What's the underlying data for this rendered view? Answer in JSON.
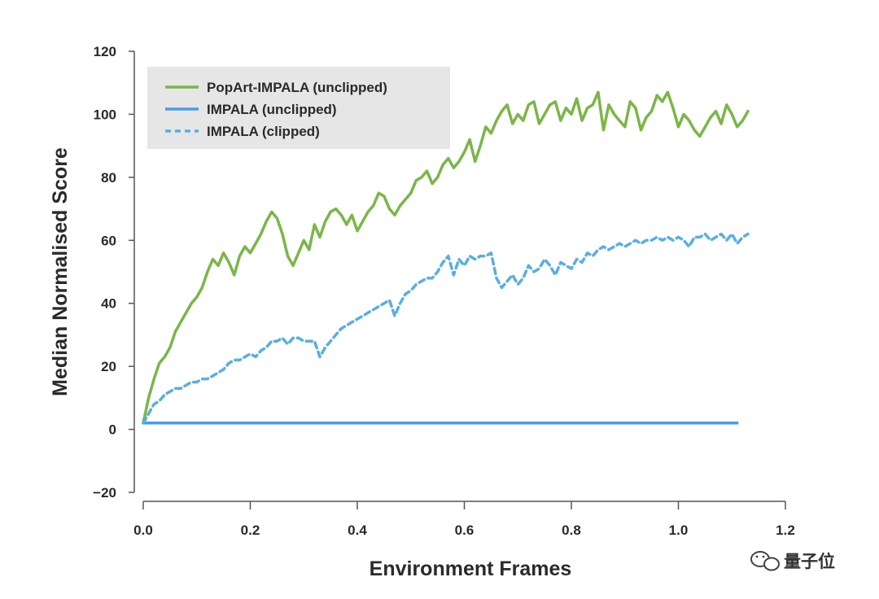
{
  "chart_data": {
    "type": "line",
    "xlabel": "Environment Frames",
    "ylabel": "Median Normalised Score",
    "xlim": [
      0.0,
      1.2
    ],
    "ylim": [
      -20,
      120
    ],
    "x_ticks": [
      "0.0",
      "0.2",
      "0.4",
      "0.6",
      "0.8",
      "1.0",
      "1.2"
    ],
    "y_ticks": [
      "120",
      "100",
      "80",
      "60",
      "40",
      "20",
      "0",
      "−20"
    ],
    "grid": false,
    "legend_position": "top-left",
    "series": [
      {
        "name": "PopArt-IMPALA (unclipped)",
        "color": "#7ab648",
        "style": "solid",
        "x": [
          0.0,
          0.01,
          0.02,
          0.03,
          0.04,
          0.05,
          0.06,
          0.07,
          0.08,
          0.09,
          0.1,
          0.11,
          0.12,
          0.13,
          0.14,
          0.15,
          0.16,
          0.17,
          0.18,
          0.19,
          0.2,
          0.21,
          0.22,
          0.23,
          0.24,
          0.25,
          0.26,
          0.27,
          0.28,
          0.29,
          0.3,
          0.31,
          0.32,
          0.33,
          0.34,
          0.35,
          0.36,
          0.37,
          0.38,
          0.39,
          0.4,
          0.41,
          0.42,
          0.43,
          0.44,
          0.45,
          0.46,
          0.47,
          0.48,
          0.49,
          0.5,
          0.51,
          0.52,
          0.53,
          0.54,
          0.55,
          0.56,
          0.57,
          0.58,
          0.59,
          0.6,
          0.61,
          0.62,
          0.63,
          0.64,
          0.65,
          0.66,
          0.67,
          0.68,
          0.69,
          0.7,
          0.71,
          0.72,
          0.73,
          0.74,
          0.75,
          0.76,
          0.77,
          0.78,
          0.79,
          0.8,
          0.81,
          0.82,
          0.83,
          0.84,
          0.85,
          0.86,
          0.87,
          0.88,
          0.89,
          0.9,
          0.91,
          0.92,
          0.93,
          0.94,
          0.95,
          0.96,
          0.97,
          0.98,
          0.99,
          1.0,
          1.01,
          1.02,
          1.03,
          1.04,
          1.05,
          1.06,
          1.07,
          1.08,
          1.09,
          1.1,
          1.11,
          1.12,
          1.13
        ],
        "values": [
          2,
          10,
          16,
          21,
          23,
          26,
          31,
          34,
          37,
          40,
          42,
          45,
          50,
          54,
          52,
          56,
          53,
          49,
          55,
          58,
          56,
          59,
          62,
          66,
          69,
          67,
          62,
          55,
          52,
          56,
          60,
          57,
          65,
          61,
          66,
          69,
          70,
          68,
          65,
          68,
          63,
          66,
          69,
          71,
          75,
          74,
          70,
          68,
          71,
          73,
          75,
          79,
          80,
          82,
          78,
          80,
          84,
          86,
          83,
          85,
          88,
          92,
          85,
          90,
          96,
          94,
          98,
          101,
          103,
          97,
          100,
          98,
          103,
          104,
          97,
          100,
          103,
          104,
          98,
          102,
          100,
          105,
          98,
          102,
          103,
          107,
          95,
          103,
          100,
          98,
          96,
          104,
          102,
          95,
          99,
          101,
          106,
          104,
          107,
          102,
          96,
          100,
          98,
          95,
          93,
          96,
          99,
          101,
          97,
          103,
          100,
          96,
          98,
          101
        ]
      },
      {
        "name": "IMPALA (unclipped)",
        "color": "#4a9be8",
        "style": "solid",
        "x": [
          0.0,
          1.11
        ],
        "values": [
          2,
          2
        ]
      },
      {
        "name": "IMPALA (clipped)",
        "color": "#5aaee0",
        "style": "dashed",
        "x": [
          0.0,
          0.01,
          0.02,
          0.03,
          0.04,
          0.05,
          0.06,
          0.07,
          0.08,
          0.09,
          0.1,
          0.11,
          0.12,
          0.13,
          0.14,
          0.15,
          0.16,
          0.17,
          0.18,
          0.19,
          0.2,
          0.21,
          0.22,
          0.23,
          0.24,
          0.25,
          0.26,
          0.27,
          0.28,
          0.29,
          0.3,
          0.31,
          0.32,
          0.33,
          0.34,
          0.35,
          0.36,
          0.37,
          0.38,
          0.39,
          0.4,
          0.41,
          0.42,
          0.43,
          0.44,
          0.45,
          0.46,
          0.47,
          0.48,
          0.49,
          0.5,
          0.51,
          0.52,
          0.53,
          0.54,
          0.55,
          0.56,
          0.57,
          0.58,
          0.59,
          0.6,
          0.61,
          0.62,
          0.63,
          0.64,
          0.65,
          0.66,
          0.67,
          0.68,
          0.69,
          0.7,
          0.71,
          0.72,
          0.73,
          0.74,
          0.75,
          0.76,
          0.77,
          0.78,
          0.79,
          0.8,
          0.81,
          0.82,
          0.83,
          0.84,
          0.85,
          0.86,
          0.87,
          0.88,
          0.89,
          0.9,
          0.91,
          0.92,
          0.93,
          0.94,
          0.95,
          0.96,
          0.97,
          0.98,
          0.99,
          1.0,
          1.01,
          1.02,
          1.03,
          1.04,
          1.05,
          1.06,
          1.07,
          1.08,
          1.09,
          1.1,
          1.11,
          1.12,
          1.13
        ],
        "values": [
          2,
          5,
          8,
          9,
          11,
          12,
          13,
          13,
          14,
          15,
          15,
          16,
          16,
          17,
          18,
          19,
          21,
          22,
          22,
          23,
          24,
          23,
          25,
          26,
          28,
          28,
          29,
          27,
          29,
          29,
          28,
          28,
          28,
          23,
          26,
          28,
          30,
          32,
          33,
          34,
          35,
          36,
          37,
          38,
          39,
          40,
          41,
          36,
          40,
          43,
          44,
          46,
          47,
          48,
          48,
          50,
          53,
          55,
          49,
          54,
          52,
          55,
          54,
          55,
          55,
          56,
          48,
          45,
          47,
          49,
          46,
          48,
          52,
          50,
          51,
          54,
          52,
          49,
          53,
          52,
          51,
          54,
          53,
          56,
          55,
          57,
          58,
          57,
          58,
          59,
          58,
          59,
          60,
          59,
          60,
          60,
          61,
          60,
          61,
          60,
          61,
          60,
          58,
          61,
          61,
          62,
          60,
          61,
          62,
          60,
          62,
          59,
          61,
          62
        ]
      }
    ]
  },
  "watermark": {
    "icon": "wechat-icon",
    "text": "量子位"
  }
}
